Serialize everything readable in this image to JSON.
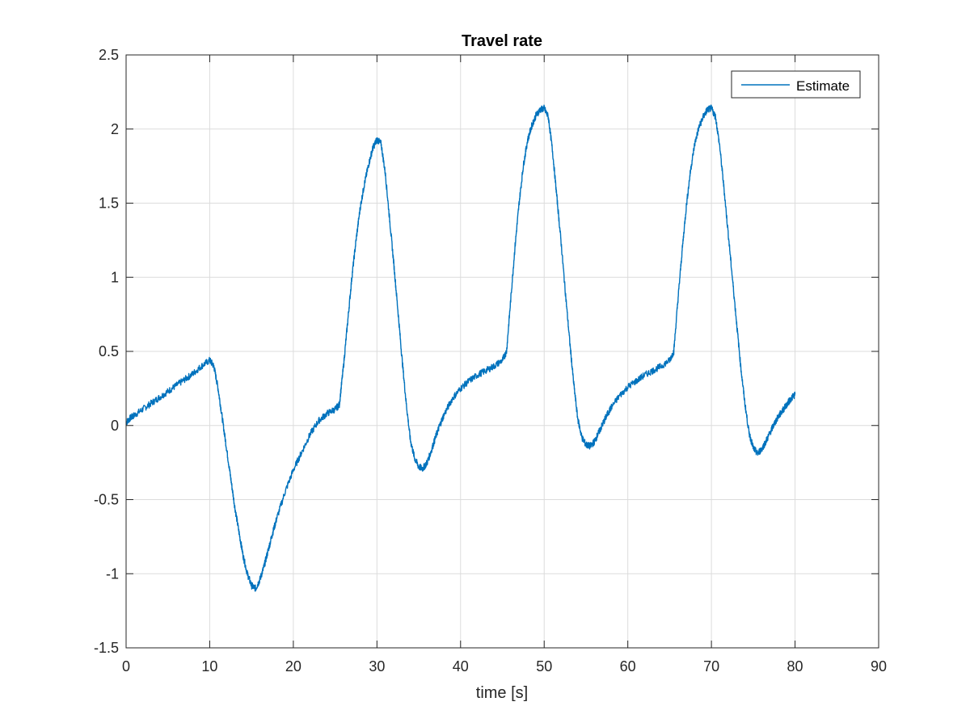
{
  "chart_data": {
    "type": "line",
    "title": "Travel rate",
    "xlabel": "time [s]",
    "ylabel": "",
    "xlim": [
      0,
      90
    ],
    "ylim": [
      -1.5,
      2.5
    ],
    "xticks": [
      0,
      10,
      20,
      30,
      40,
      50,
      60,
      70,
      80,
      90
    ],
    "yticks": [
      -1.5,
      -1,
      -0.5,
      0,
      0.5,
      1,
      1.5,
      2,
      2.5
    ],
    "xtick_labels": [
      "0",
      "10",
      "20",
      "30",
      "40",
      "50",
      "60",
      "70",
      "80",
      "90"
    ],
    "ytick_labels": [
      "-1.5",
      "-1",
      "-0.5",
      "0",
      "0.5",
      "1",
      "1.5",
      "2",
      "2.5"
    ],
    "grid": true,
    "legend": "top-right",
    "series": [
      {
        "name": "Estimate",
        "color": "#0072BD",
        "x": [
          0,
          0.5,
          1,
          2,
          3,
          4,
          5,
          6,
          7,
          8,
          9,
          10,
          10.5,
          11,
          11.5,
          12,
          12.5,
          13,
          13.5,
          14,
          14.5,
          15,
          15.5,
          16,
          16.5,
          17,
          17.5,
          18,
          19,
          20,
          21,
          22,
          23,
          24,
          25,
          25.5,
          26,
          26.5,
          27,
          27.5,
          28,
          28.5,
          29,
          29.5,
          30,
          30.5,
          31,
          31.5,
          32,
          32.5,
          33,
          33.5,
          34,
          34.5,
          35,
          35.5,
          36,
          36.5,
          37,
          37.5,
          38,
          39,
          40,
          41,
          42,
          43,
          44,
          45,
          45.5,
          46,
          46.5,
          47,
          47.5,
          48,
          48.5,
          49,
          49.5,
          50,
          50.5,
          51,
          51.5,
          52,
          52.5,
          53,
          53.5,
          54,
          54.5,
          55,
          55.5,
          56,
          56.5,
          57,
          57.5,
          58,
          59,
          60,
          61,
          62,
          63,
          64,
          65,
          65.5,
          66,
          66.5,
          67,
          67.5,
          68,
          68.5,
          69,
          69.5,
          70,
          70.5,
          71,
          71.5,
          72,
          72.5,
          73,
          73.5,
          74,
          74.5,
          75,
          75.5,
          76,
          76.5,
          77,
          77.5,
          78,
          78.5,
          79,
          79.5,
          80
        ],
        "values": [
          0.02,
          0.05,
          0.07,
          0.11,
          0.15,
          0.19,
          0.23,
          0.27,
          0.31,
          0.35,
          0.4,
          0.44,
          0.4,
          0.25,
          0.05,
          -0.15,
          -0.35,
          -0.55,
          -0.72,
          -0.88,
          -1.0,
          -1.08,
          -1.1,
          -1.04,
          -0.95,
          -0.84,
          -0.73,
          -0.63,
          -0.45,
          -0.3,
          -0.18,
          -0.06,
          0.03,
          0.08,
          0.11,
          0.14,
          0.4,
          0.7,
          1.0,
          1.25,
          1.47,
          1.63,
          1.76,
          1.87,
          1.93,
          1.9,
          1.7,
          1.4,
          1.1,
          0.78,
          0.45,
          0.15,
          -0.1,
          -0.22,
          -0.28,
          -0.29,
          -0.25,
          -0.17,
          -0.08,
          0.0,
          0.07,
          0.18,
          0.25,
          0.3,
          0.34,
          0.37,
          0.4,
          0.44,
          0.5,
          0.85,
          1.2,
          1.5,
          1.75,
          1.92,
          2.02,
          2.09,
          2.13,
          2.14,
          2.08,
          1.85,
          1.55,
          1.25,
          0.92,
          0.6,
          0.3,
          0.05,
          -0.08,
          -0.13,
          -0.14,
          -0.11,
          -0.05,
          0.01,
          0.07,
          0.12,
          0.2,
          0.26,
          0.3,
          0.34,
          0.37,
          0.4,
          0.44,
          0.5,
          0.85,
          1.18,
          1.48,
          1.72,
          1.9,
          2.01,
          2.08,
          2.13,
          2.14,
          2.08,
          1.88,
          1.6,
          1.3,
          1.0,
          0.7,
          0.4,
          0.15,
          -0.05,
          -0.15,
          -0.19,
          -0.16,
          -0.11,
          -0.05,
          0.01,
          0.06,
          0.1,
          0.14,
          0.18,
          0.21
        ]
      }
    ]
  }
}
